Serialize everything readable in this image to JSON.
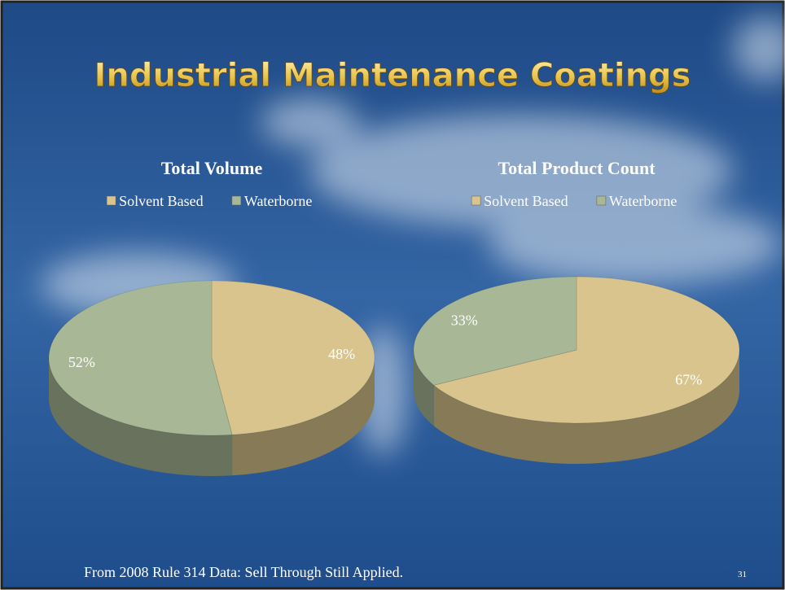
{
  "slide": {
    "title": "Industrial Maintenance Coatings",
    "footer": "From 2008 Rule 314 Data: Sell Through Still Applied.",
    "page_number": "31"
  },
  "chart_data": [
    {
      "type": "pie",
      "title": "Total Volume",
      "categories": [
        "Solvent Based",
        "Waterborne"
      ],
      "values": [
        48,
        52
      ],
      "value_labels": [
        "48%",
        "52%"
      ],
      "colors": [
        "#d8c48c",
        "#a8b896"
      ],
      "legend": "top"
    },
    {
      "type": "pie",
      "title": "Total Product Count",
      "categories": [
        "Solvent Based",
        "Waterborne"
      ],
      "values": [
        67,
        33
      ],
      "value_labels": [
        "67%",
        "33%"
      ],
      "colors": [
        "#d8c48c",
        "#a8b896"
      ],
      "legend": "top"
    }
  ]
}
